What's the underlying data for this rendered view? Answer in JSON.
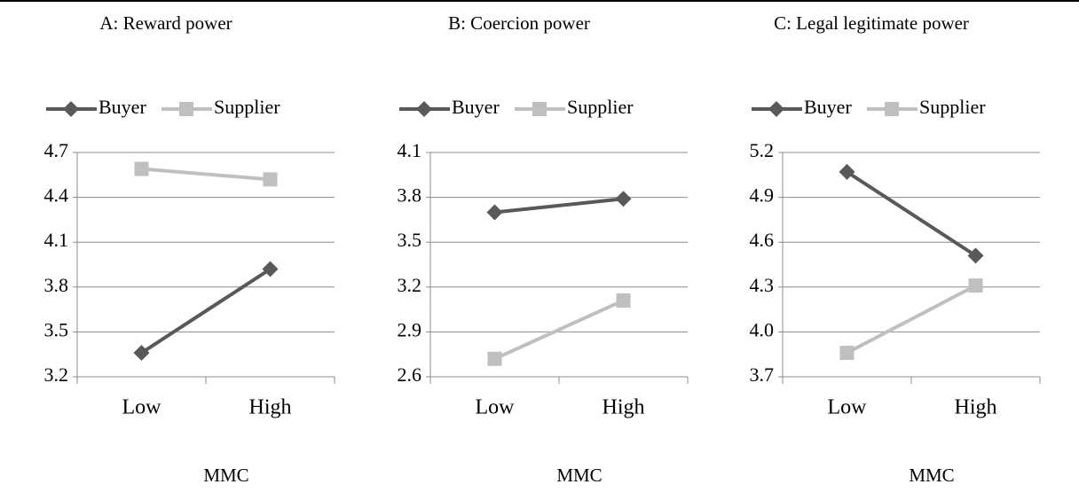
{
  "chart_data": [
    {
      "type": "line",
      "title": "A: Reward power",
      "categories": [
        "Low",
        "High"
      ],
      "xlabel": "MMC",
      "series": [
        {
          "name": "Buyer",
          "color": "#595959",
          "marker": "diamond",
          "values": [
            3.36,
            3.92
          ]
        },
        {
          "name": "Supplier",
          "color": "#bfbfbf",
          "marker": "square",
          "values": [
            4.59,
            4.52
          ]
        }
      ],
      "ylim": [
        3.2,
        4.7
      ],
      "yticks": [
        3.2,
        3.5,
        3.8,
        4.1,
        4.4,
        4.7
      ],
      "grid": true
    },
    {
      "type": "line",
      "title": "B: Coercion power",
      "categories": [
        "Low",
        "High"
      ],
      "xlabel": "MMC",
      "series": [
        {
          "name": "Buyer",
          "color": "#595959",
          "marker": "diamond",
          "values": [
            3.7,
            3.79
          ]
        },
        {
          "name": "Supplier",
          "color": "#bfbfbf",
          "marker": "square",
          "values": [
            2.72,
            3.11
          ]
        }
      ],
      "ylim": [
        2.6,
        4.1
      ],
      "yticks": [
        2.6,
        2.9,
        3.2,
        3.5,
        3.8,
        4.1
      ],
      "grid": true
    },
    {
      "type": "line",
      "title": "C: Legal legitimate power",
      "categories": [
        "Low",
        "High"
      ],
      "xlabel": "MMC",
      "series": [
        {
          "name": "Buyer",
          "color": "#595959",
          "marker": "diamond",
          "values": [
            5.07,
            4.51
          ]
        },
        {
          "name": "Supplier",
          "color": "#bfbfbf",
          "marker": "square",
          "values": [
            3.86,
            4.31
          ]
        }
      ],
      "ylim": [
        3.7,
        5.2
      ],
      "yticks": [
        3.7,
        {
          "value": 4,
          "label": "4.0"
        },
        4.3,
        4.6,
        4.9,
        5.2
      ],
      "grid": true
    }
  ]
}
